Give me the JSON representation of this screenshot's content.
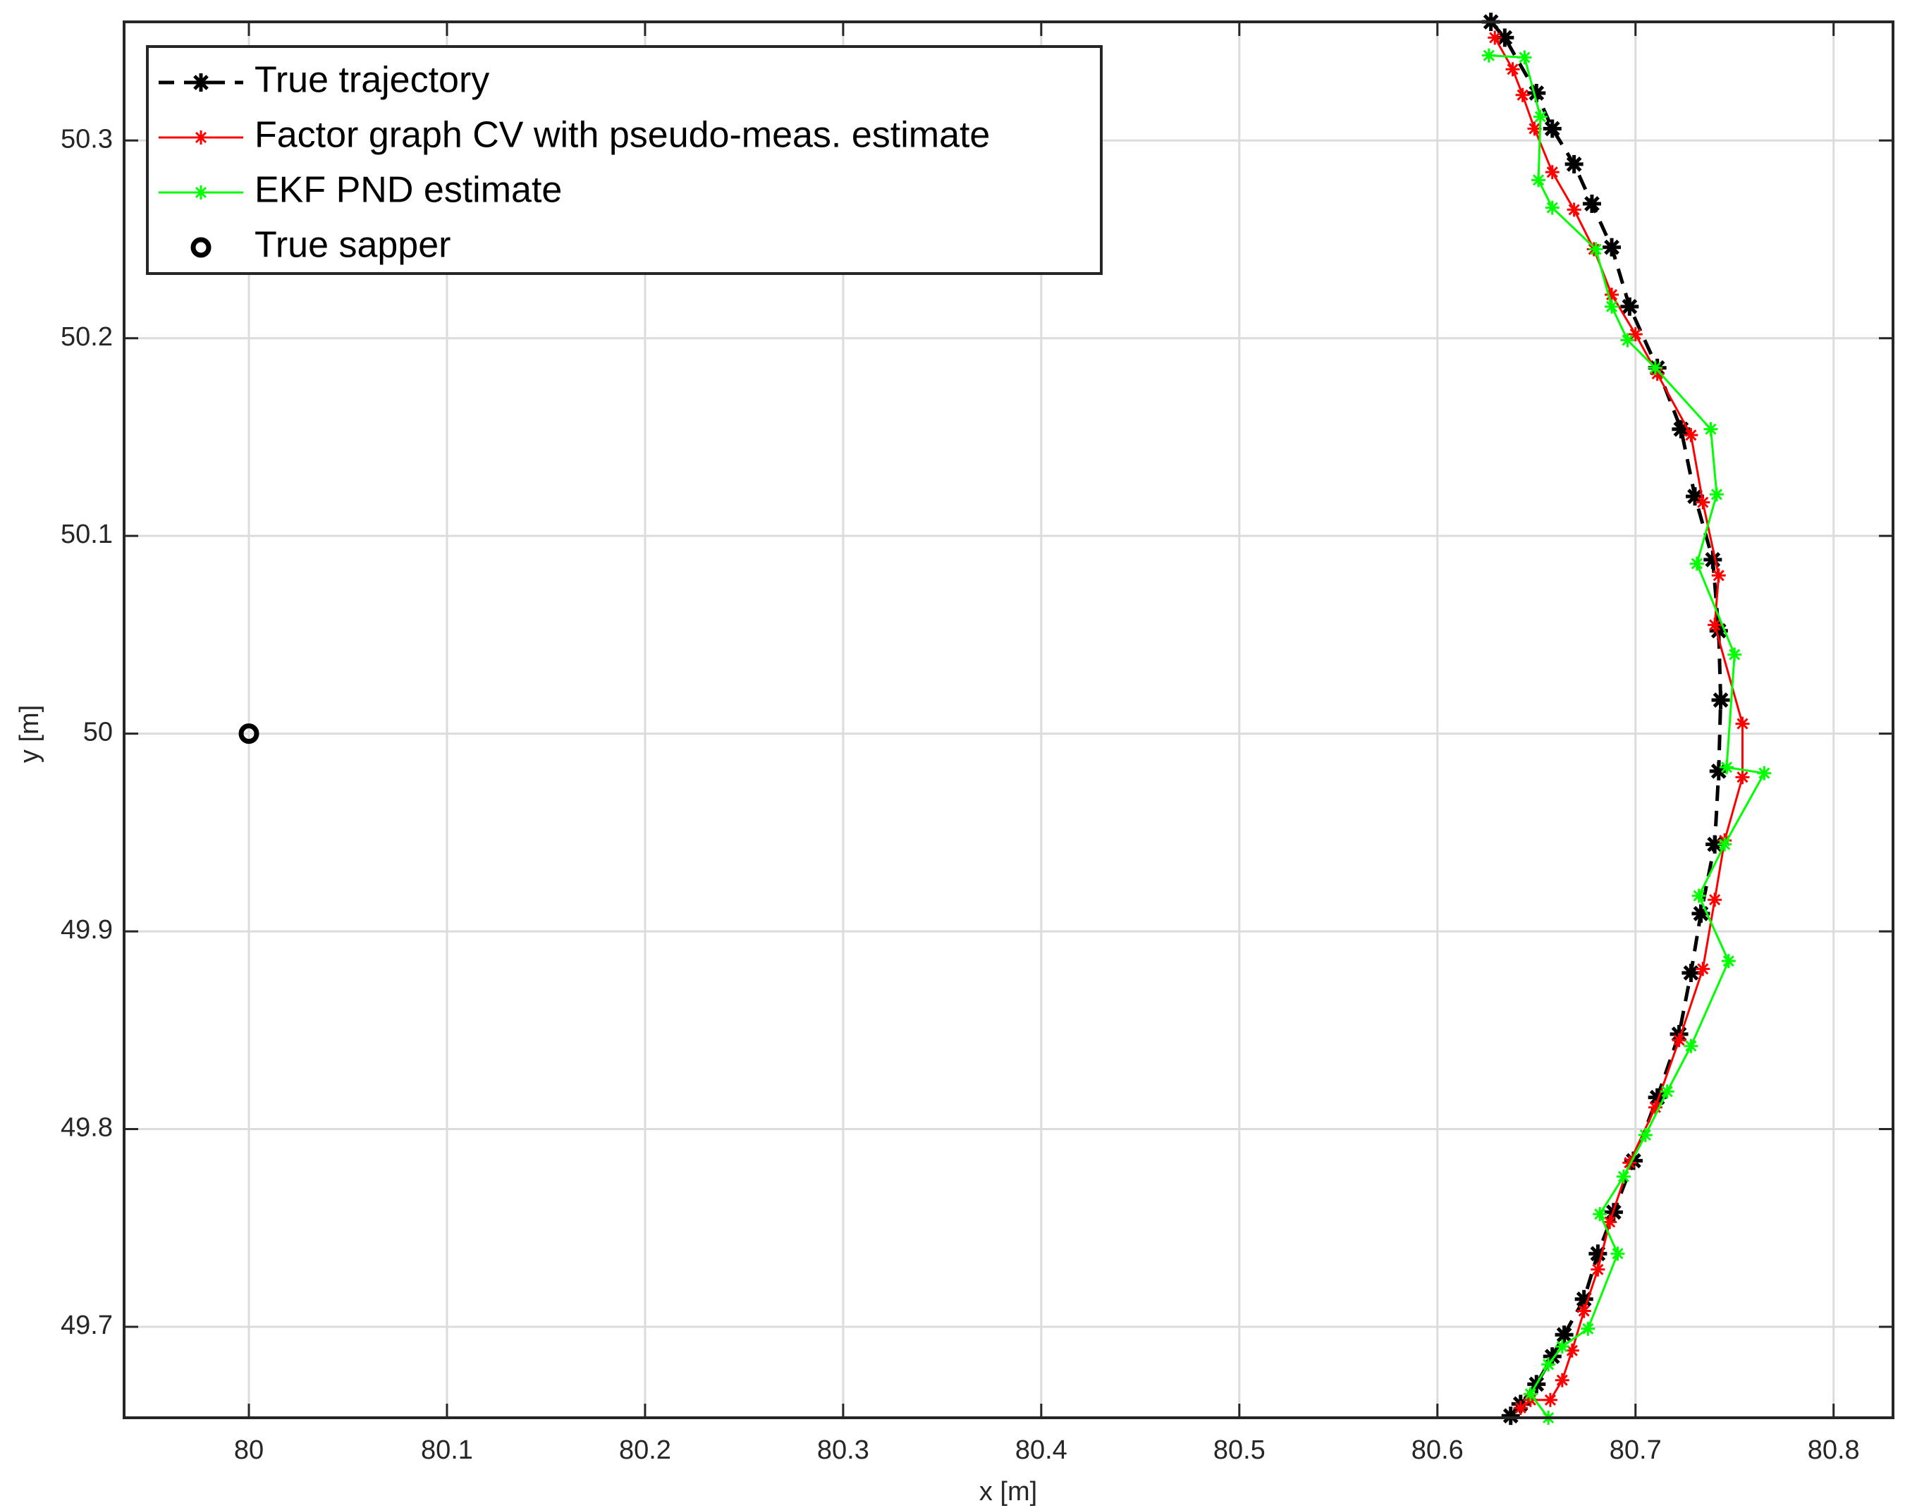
{
  "chart_data": {
    "type": "line",
    "x_label": "x [m]",
    "y_label": "y [m]",
    "xlim": [
      79.937,
      80.83
    ],
    "ylim": [
      49.654,
      50.36
    ],
    "xticks": [
      80,
      80.1,
      80.2,
      80.3,
      80.4,
      80.5,
      80.6,
      80.7,
      80.8
    ],
    "yticks": [
      49.7,
      49.8,
      49.9,
      50,
      50.1,
      50.2,
      50.3
    ],
    "grid": true,
    "legend_location": "northwest",
    "series": [
      {
        "name": "True trajectory",
        "color": "#000000",
        "line_style": "dashed",
        "marker": "asterisk",
        "x": [
          80.627,
          80.634,
          80.65,
          80.658,
          80.669,
          80.678,
          80.688,
          80.697,
          80.711,
          80.723,
          80.73,
          80.739,
          80.742,
          80.743,
          80.742,
          80.74,
          80.733,
          80.728,
          80.722,
          80.711,
          80.699,
          80.689,
          80.681,
          80.674,
          80.664,
          80.658,
          80.65,
          80.642,
          80.637
        ],
        "values": [
          50.36,
          50.352,
          50.324,
          50.306,
          50.288,
          50.268,
          50.246,
          50.216,
          50.185,
          50.154,
          50.12,
          50.088,
          50.052,
          50.017,
          49.981,
          49.944,
          49.909,
          49.879,
          49.848,
          49.816,
          49.784,
          49.758,
          49.737,
          49.714,
          49.696,
          49.685,
          49.671,
          49.661,
          49.655
        ]
      },
      {
        "name": "Factor graph CV with pseudo-meas. estimate",
        "color": "#ff0000",
        "line_style": "solid",
        "marker": "asterisk",
        "x": [
          80.629,
          80.638,
          80.643,
          80.649,
          80.658,
          80.669,
          80.679,
          80.688,
          80.7,
          80.711,
          80.728,
          80.734,
          80.742,
          80.74,
          80.754,
          80.754,
          80.745,
          80.74,
          80.734,
          80.722,
          80.71,
          80.697,
          80.687,
          80.681,
          80.674,
          80.668,
          80.663,
          80.657,
          80.647,
          80.642
        ],
        "values": [
          50.352,
          50.336,
          50.323,
          50.306,
          50.284,
          50.265,
          50.245,
          50.222,
          50.202,
          50.182,
          50.151,
          50.117,
          50.08,
          50.055,
          50.005,
          49.978,
          49.946,
          49.916,
          49.881,
          49.845,
          49.811,
          49.783,
          49.753,
          49.729,
          49.708,
          49.688,
          49.673,
          49.663,
          49.663,
          49.659
        ]
      },
      {
        "name": "EKF PND estimate",
        "color": "#00ff00",
        "line_style": "solid",
        "marker": "asterisk",
        "x": [
          80.626,
          80.644,
          80.652,
          80.651,
          80.658,
          80.68,
          80.688,
          80.696,
          80.71,
          80.738,
          80.741,
          80.731,
          80.75,
          80.746,
          80.765,
          80.745,
          80.732,
          80.747,
          80.728,
          80.716,
          80.705,
          80.694,
          80.682,
          80.691,
          80.676,
          80.663,
          80.656,
          80.647,
          80.656
        ],
        "values": [
          50.343,
          50.342,
          50.312,
          50.28,
          50.266,
          50.245,
          50.216,
          50.199,
          50.185,
          50.154,
          50.121,
          50.086,
          50.04,
          49.983,
          49.98,
          49.944,
          49.918,
          49.885,
          49.842,
          49.819,
          49.797,
          49.776,
          49.757,
          49.737,
          49.699,
          49.69,
          49.681,
          49.666,
          49.654
        ]
      },
      {
        "name": "True sapper",
        "color": "#000000",
        "line_style": "none",
        "marker": "circle",
        "x": [
          80
        ],
        "values": [
          50
        ]
      }
    ]
  }
}
